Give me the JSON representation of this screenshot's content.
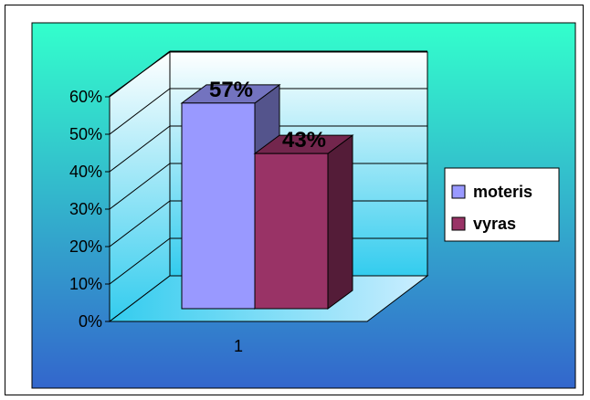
{
  "chart_data": {
    "type": "bar",
    "categories": [
      "1"
    ],
    "series": [
      {
        "name": "moteris",
        "values": [
          57
        ],
        "label": "57%",
        "color": "#9999ff"
      },
      {
        "name": "vyras",
        "values": [
          43
        ],
        "label": "43%",
        "color": "#993366"
      }
    ],
    "y_ticks": [
      "0%",
      "10%",
      "20%",
      "30%",
      "40%",
      "50%",
      "60%"
    ],
    "ylim": [
      0,
      60
    ],
    "grid": true,
    "legend_position": "right",
    "background": {
      "top": "#33ffcc",
      "bottom": "#3366cc"
    },
    "title": "",
    "xlabel": "",
    "ylabel": ""
  }
}
